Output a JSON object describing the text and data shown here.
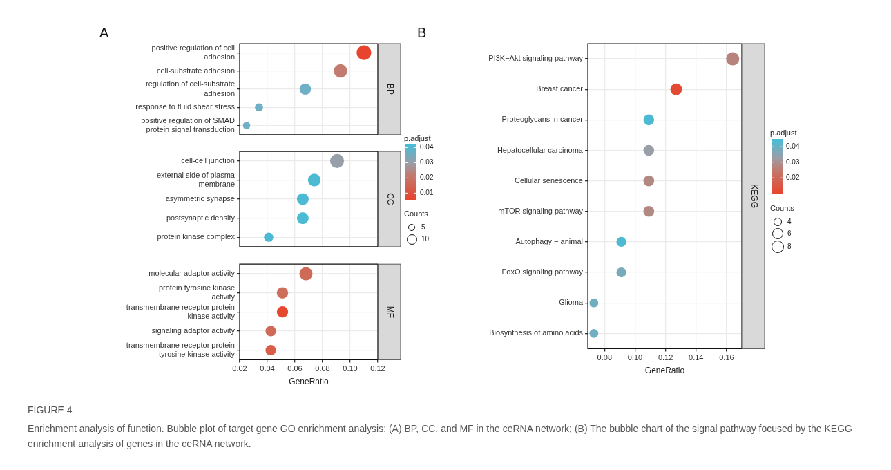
{
  "chart_data": [
    {
      "type": "bubble",
      "title": "A",
      "orientation": "horizontal",
      "categories": [
        "positive regulation of cell adhesion",
        "cell-substrate adhesion",
        "regulation of cell-substrate adhesion",
        "response to fluid shear stress",
        "positive regulation of SMAD protein signal transduction"
      ],
      "values": [
        0.11,
        0.093,
        0.0675,
        0.034,
        0.025
      ],
      "sizes": [
        1,
        0.85,
        0.6,
        0.3,
        0.25
      ],
      "colors": [
        "#e8432d",
        "#c27b6e",
        "#6fb0c6",
        "#6fb0c6",
        "#6fb0c6"
      ],
      "xlim": [
        0.02,
        0.12
      ],
      "xticks": [
        0.02,
        0.04,
        0.06,
        0.08,
        0.1,
        0.12
      ],
      "grid": true,
      "tick_labels": "y",
      "annotations": [
        "BP"
      ]
    },
    {
      "type": "bubble",
      "orientation": "horizontal",
      "categories": [
        "cell-cell junction",
        "external side of plasma membrane",
        "asymmetric synapse",
        "postsynaptic density",
        "protein kinase complex"
      ],
      "values": [
        0.0905,
        0.074,
        0.0657,
        0.0657,
        0.041
      ],
      "sizes": [
        18,
        15,
        13,
        13,
        8
      ],
      "cvalues": [
        0.03,
        0.041,
        0.041,
        0.041,
        0.041
      ],
      "clim": [
        0.0056,
        0.042
      ],
      "cticks": [
        0.01,
        0.02,
        0.03,
        0.04
      ],
      "clabel": "p.adjust",
      "size_legend": [
        5,
        10
      ],
      "legend_title": "Counts",
      "xlim": [
        0.02,
        0.12
      ],
      "xticks": [
        0.02,
        0.04,
        0.06,
        0.08,
        0.1,
        0.12
      ],
      "grid": true,
      "tick_labels": "y",
      "annotations": [
        "CC"
      ]
    },
    {
      "type": "bubble",
      "orientation": "horizontal",
      "categories": [
        "molecular adaptor activity",
        "protein tyrosine kinase activity",
        "transmembrane receptor protein kinase activity",
        "signaling adaptor activity",
        "transmembrane receptor protein tyrosine kinase activity"
      ],
      "values": [
        0.068,
        0.051,
        0.051,
        0.0425,
        0.0425
      ],
      "sizes": [
        1,
        0.75,
        0.75,
        0.63,
        0.63
      ],
      "colors": [
        "#cf6a58",
        "#cd6e5c",
        "#e5472f",
        "#cf6a58",
        "#d95d47"
      ],
      "xlabel": "GeneRatio",
      "xlim": [
        0.02,
        0.12
      ],
      "xticks": [
        0.02,
        0.04,
        0.06,
        0.08,
        {
          "value": 0.1,
          "label": "0.10"
        },
        0.12
      ],
      "grid": true,
      "annotations": [
        "MF"
      ]
    },
    {
      "type": "bubble",
      "title": "B",
      "orientation": "horizontal",
      "categories": [
        "PI3K−Akt signaling pathway",
        "Breast cancer",
        "Proteoglycans in cancer",
        "Hepatocellular carcinoma",
        "Cellular senescence",
        "mTOR signaling pathway",
        "Autophagy − animal",
        "FoxO signaling pathway",
        "Glioma",
        "Biosynthesis of amino acids"
      ],
      "values": [
        0.164,
        0.127,
        0.109,
        0.109,
        0.109,
        0.109,
        0.091,
        0.091,
        0.073,
        0.073
      ],
      "sizes": [
        9,
        7,
        6,
        6,
        6,
        6,
        5,
        5,
        4,
        4
      ],
      "cvalues": [
        0.027,
        0.011,
        0.044,
        0.033,
        0.028,
        0.028,
        0.044,
        0.038,
        0.039,
        0.039
      ],
      "clim": [
        0.0094,
        0.045
      ],
      "cticks": [
        0.02,
        0.03,
        0.04
      ],
      "clabel": "p.adjust",
      "size_legend": [
        4,
        6,
        8
      ],
      "legend_title": "Counts",
      "xlabel": "GeneRatio",
      "xlim": [
        0.069,
        0.17
      ],
      "xticks": [
        0.08,
        {
          "value": 0.1,
          "label": "0.10"
        },
        0.12,
        0.14,
        0.16
      ],
      "grid": true,
      "annotations": [
        "KEGG",
        "FIGURE 4",
        "Enrichment analysis of function. Bubble plot of target gene GO enrichment analysis: (A) BP, CC, and MF in the ceRNA network; (B) The bubble chart of the signal pathway focused by the KEGG enrichment analysis of genes in the ceRNA network."
      ]
    }
  ]
}
